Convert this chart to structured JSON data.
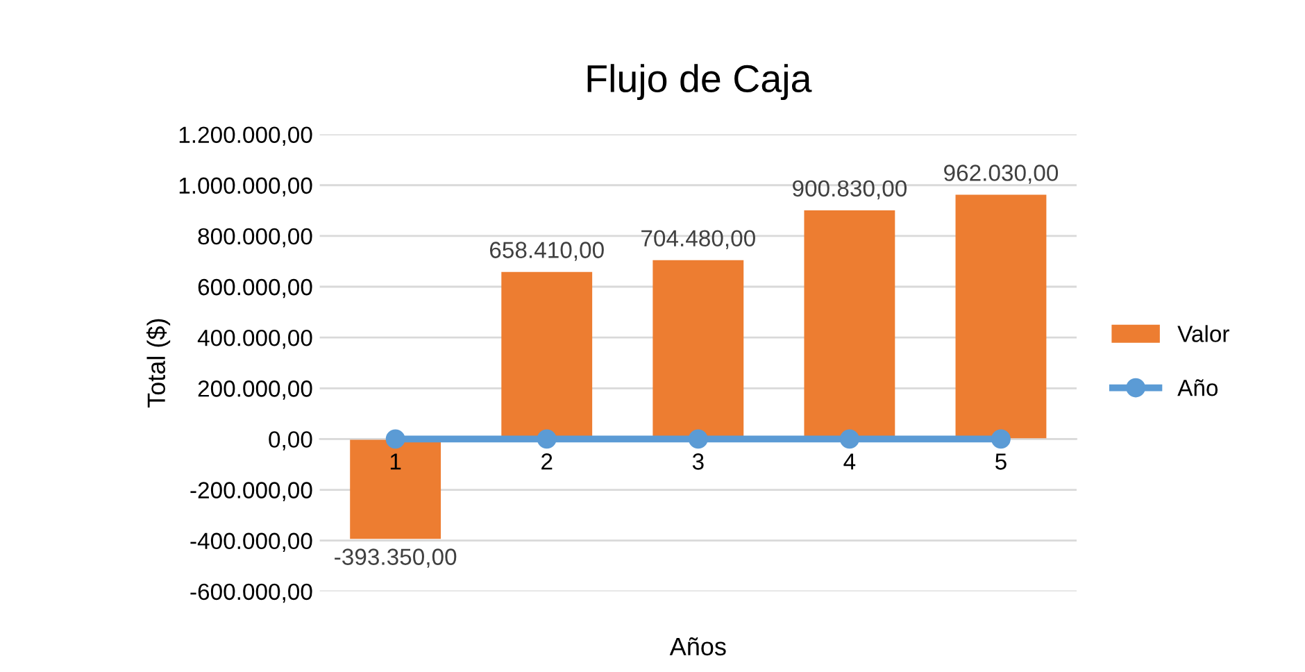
{
  "chart_data": {
    "type": "bar",
    "title": "Flujo de Caja",
    "xlabel": "Años",
    "ylabel": "Total ($)",
    "categories": [
      "1",
      "2",
      "3",
      "4",
      "5"
    ],
    "series": [
      {
        "name": "Valor",
        "color": "#ed7d31",
        "values": [
          -393350,
          658410,
          704480,
          900830,
          962030
        ],
        "value_labels": [
          "-393.350,00",
          "658.410,00",
          "704.480,00",
          "900.830,00",
          "962.030,00"
        ]
      },
      {
        "name": "Año",
        "type": "line",
        "color": "#5b9bd5",
        "marker": "circle",
        "values": [
          0,
          0,
          0,
          0,
          0
        ]
      }
    ],
    "ylim": [
      -600000,
      1200000
    ],
    "yticks": [
      {
        "value": -600000,
        "label": "-600.000,00"
      },
      {
        "value": -400000,
        "label": "-400.000,00"
      },
      {
        "value": -200000,
        "label": "-200.000,00"
      },
      {
        "value": 0,
        "label": "0,00"
      },
      {
        "value": 200000,
        "label": "200.000,00"
      },
      {
        "value": 400000,
        "label": "400.000,00"
      },
      {
        "value": 600000,
        "label": "600.000,00"
      },
      {
        "value": 800000,
        "label": "800.000,00"
      },
      {
        "value": 1000000,
        "label": "1.000.000,00"
      },
      {
        "value": 1200000,
        "label": "1.200.000,00"
      }
    ],
    "grid": "y",
    "legend": "right"
  }
}
